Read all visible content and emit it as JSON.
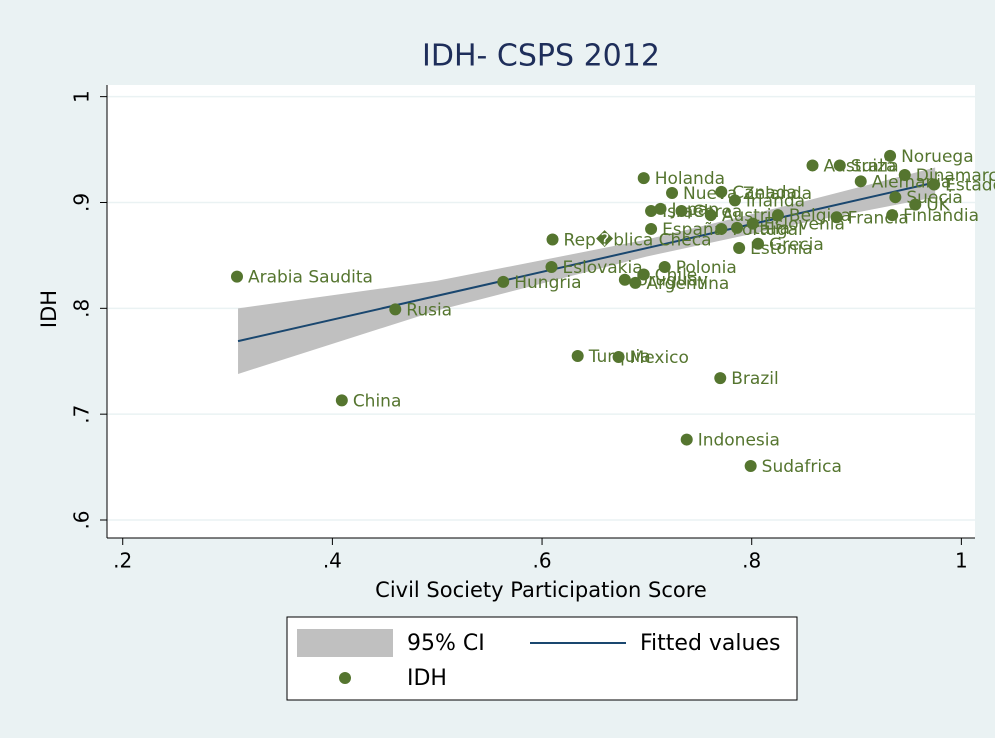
{
  "chart_data": {
    "type": "scatter",
    "title": "IDH- CSPS 2012",
    "x_label": "Civil Society Participation Score",
    "y_label": "IDH",
    "xlim": [
      0.185,
      1.013
    ],
    "ylim": [
      0.583,
      1.011
    ],
    "xticks": [
      {
        "value": 0.2,
        "label": ".2"
      },
      {
        "value": 0.4,
        "label": ".4"
      },
      {
        "value": 0.6,
        "label": ".6"
      },
      {
        "value": 0.8,
        "label": ".8"
      },
      1
    ],
    "yticks": [
      {
        "value": 0.6,
        "label": ".6"
      },
      {
        "value": 0.7,
        "label": ".7"
      },
      {
        "value": 0.8,
        "label": ".8"
      },
      {
        "value": 0.9,
        "label": ".9"
      },
      1
    ],
    "grid": true,
    "legend": "bottom",
    "series": [
      {
        "name": "IDH",
        "type": "scatter",
        "color": "#55752f",
        "labels": [
          "Arabia Saudita",
          "Rusia",
          "China",
          "Hungria",
          "Eslovakia",
          "Rep�blica Checa",
          "Turquia",
          "Mexico",
          "Brazil",
          "Indonesia",
          "Sudafrica",
          "Uruguay",
          "Argentina",
          "Chile",
          "Polonia",
          "Holanda",
          "Nueva Zelanda",
          "Israel",
          "Japan",
          "Corea",
          "España",
          "Austria",
          "Canada",
          "Irlanda",
          "Portugal",
          "Italia",
          "Eslovenia",
          "Estonia",
          "Grecia",
          "Belgica",
          "Francia",
          "Australia",
          "Suiza",
          "Noruega",
          "Dinamarca",
          "Alemania",
          "Estados Unidos",
          "Suecia",
          "UK",
          "Finlandia"
        ],
        "x": [
          0.309,
          0.46,
          0.409,
          0.563,
          0.609,
          0.61,
          0.634,
          0.673,
          0.77,
          0.738,
          0.799,
          0.679,
          0.689,
          0.697,
          0.717,
          0.697,
          0.724,
          0.704,
          0.713,
          0.733,
          0.704,
          0.761,
          0.771,
          0.784,
          0.771,
          0.786,
          0.801,
          0.788,
          0.806,
          0.825,
          0.881,
          0.858,
          0.884,
          0.932,
          0.946,
          0.904,
          0.974,
          0.937,
          0.956,
          0.934
        ],
        "values": [
          0.83,
          0.799,
          0.713,
          0.825,
          0.839,
          0.865,
          0.755,
          0.754,
          0.734,
          0.676,
          0.651,
          0.827,
          0.824,
          0.832,
          0.839,
          0.923,
          0.909,
          0.892,
          0.894,
          0.892,
          0.875,
          0.888,
          0.91,
          0.902,
          0.875,
          0.876,
          0.88,
          0.857,
          0.861,
          0.888,
          0.886,
          0.935,
          0.935,
          0.944,
          0.926,
          0.92,
          0.917,
          0.905,
          0.898,
          0.888
        ]
      },
      {
        "name": "Fitted values",
        "type": "line",
        "color": "#1a476f",
        "x": [
          0.31,
          0.975
        ],
        "values": [
          0.769,
          0.919
        ]
      },
      {
        "name": "95% CI",
        "type": "area",
        "color": "#c0c0c0",
        "x": [
          0.31,
          0.5,
          0.7,
          0.85,
          0.975
        ],
        "upper": [
          0.8,
          0.826,
          0.865,
          0.901,
          0.933
        ],
        "lower": [
          0.738,
          0.798,
          0.849,
          0.881,
          0.905
        ]
      }
    ]
  }
}
